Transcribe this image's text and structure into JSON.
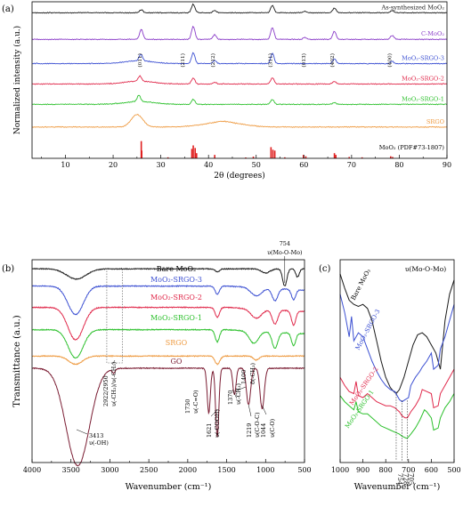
{
  "chart_data": [
    {
      "panel": "(a)",
      "type": "line",
      "title": "",
      "xlabel": "2θ (degrees)",
      "ylabel": "Normalized intensity (a.u.)",
      "xlim": [
        3,
        90
      ],
      "xticks": [
        10,
        20,
        30,
        40,
        50,
        60,
        70,
        80,
        90
      ],
      "grid": false,
      "series": [
        {
          "name": "As-synthesized MoO₂",
          "color": "#1a1a1a",
          "offset": 0.93,
          "amp": 0.055,
          "peaks": [
            [
              25.9,
              0.35
            ],
            [
              36.8,
              1.0
            ],
            [
              41.3,
              0.25
            ],
            [
              53.4,
              0.85
            ],
            [
              60.2,
              0.15
            ],
            [
              66.4,
              0.55
            ],
            [
              78.5,
              0.25
            ]
          ]
        },
        {
          "name": "C-MoO₂",
          "color": "#8a3cc8",
          "offset": 0.76,
          "amp": 0.085,
          "peaks": [
            [
              25.9,
              0.75
            ],
            [
              36.8,
              1.0
            ],
            [
              41.3,
              0.35
            ],
            [
              53.4,
              0.9
            ],
            [
              60.2,
              0.15
            ],
            [
              66.4,
              0.6
            ],
            [
              78.5,
              0.3
            ]
          ]
        },
        {
          "name": "MoO₂-SRGO-3",
          "color": "#3c50d2",
          "offset": 0.605,
          "amp": 0.07,
          "peaks": [
            [
              25.8,
              0.6
            ],
            [
              36.8,
              1.0
            ],
            [
              41.3,
              0.3
            ],
            [
              53.4,
              0.95
            ],
            [
              66.4,
              0.45
            ],
            [
              78.5,
              0.2
            ]
          ]
        },
        {
          "name": "MoO₂-SRGO-2",
          "color": "#e0284a",
          "offset": 0.475,
          "amp": 0.045,
          "peaks": [
            [
              25.6,
              0.75
            ],
            [
              36.8,
              0.85
            ],
            [
              41.3,
              0.25
            ],
            [
              53.4,
              0.9
            ],
            [
              66.4,
              0.35
            ]
          ]
        },
        {
          "name": "MoO₂-SRGO-1",
          "color": "#2cc02c",
          "offset": 0.345,
          "amp": 0.045,
          "peaks": [
            [
              25.4,
              0.9
            ],
            [
              36.8,
              0.7
            ],
            [
              53.4,
              0.7
            ],
            [
              66.4,
              0.25
            ]
          ]
        },
        {
          "name": "SRGO",
          "color": "#ee9a40",
          "offset": 0.2,
          "amp": 0.08,
          "peaks": [
            [
              25.0,
              1.0
            ],
            [
              43.0,
              0.08
            ]
          ]
        }
      ],
      "reference": {
        "name": "MoO₂ (PDF#73-1807)",
        "color": "#e02020",
        "x": [
          25.9,
          26.0,
          31.5,
          36.5,
          36.8,
          37.2,
          37.5,
          41.3,
          47.8,
          49.4,
          53.1,
          53.5,
          53.9,
          56.0,
          59.9,
          60.4,
          66.4,
          66.7,
          69.5,
          72.2,
          78.2,
          78.6
        ],
        "y": [
          1.0,
          0.45,
          0.06,
          0.55,
          0.75,
          0.6,
          0.3,
          0.2,
          0.05,
          0.1,
          0.65,
          0.5,
          0.45,
          0.06,
          0.2,
          0.12,
          0.3,
          0.2,
          0.08,
          0.06,
          0.12,
          0.08
        ]
      },
      "annotations": [
        {
          "text": "(011)",
          "x": 26.0
        },
        {
          "text": "(211)",
          "x": 36.0
        },
        {
          "text": "(212)",
          "x": 41.3
        },
        {
          "text": "(311)",
          "x": 53.3
        },
        {
          "text": "(013)",
          "x": 60.3
        },
        {
          "text": "(402)",
          "x": 66.3
        },
        {
          "text": "(400)",
          "x": 78.3
        }
      ]
    },
    {
      "panel": "(b)",
      "type": "line",
      "title": "",
      "xlabel": "Wavenumber (cm⁻¹)",
      "ylabel": "Transmittance (a.u.)",
      "xlim": [
        4000,
        500
      ],
      "xticks": [
        4000,
        3500,
        3000,
        2500,
        2000,
        1500,
        1000,
        500
      ],
      "grid": false,
      "series": [
        {
          "name": "Bare MoO₂",
          "color": "#1a1a1a",
          "base": 0.955,
          "dips": [
            [
              3430,
              280,
              0.05
            ],
            [
              1620,
              60,
              0.015
            ],
            [
              1000,
              120,
              0.02
            ],
            [
              754,
              60,
              0.085
            ],
            [
              590,
              50,
              0.04
            ]
          ]
        },
        {
          "name": "MoO₂-SRGO-3",
          "color": "#3c50d2",
          "base": 0.87,
          "dips": [
            [
              3440,
              220,
              0.14
            ],
            [
              1620,
              60,
              0.04
            ],
            [
              1120,
              150,
              0.04
            ],
            [
              880,
              80,
              0.06
            ],
            [
              640,
              60,
              0.05
            ]
          ]
        },
        {
          "name": "MoO₂-SRGO-2",
          "color": "#e0284a",
          "base": 0.765,
          "dips": [
            [
              3440,
              220,
              0.16
            ],
            [
              1620,
              60,
              0.05
            ],
            [
              1120,
              150,
              0.045
            ],
            [
              880,
              80,
              0.07
            ],
            [
              640,
              60,
              0.07
            ]
          ]
        },
        {
          "name": "MoO₂-SRGO-1",
          "color": "#2cc02c",
          "base": 0.655,
          "dips": [
            [
              3440,
              210,
              0.14
            ],
            [
              1620,
              60,
              0.06
            ],
            [
              1150,
              130,
              0.06
            ],
            [
              880,
              80,
              0.08
            ],
            [
              640,
              60,
              0.06
            ]
          ]
        },
        {
          "name": "SRGO",
          "color": "#ee9a40",
          "base": 0.525,
          "dips": [
            [
              3440,
              200,
              0.04
            ],
            [
              1620,
              70,
              0.04
            ],
            [
              1120,
              80,
              0.02
            ]
          ]
        },
        {
          "name": "GO",
          "color": "#7a1c32",
          "base": 0.465,
          "dips": [
            [
              3413,
              330,
              0.48
            ],
            [
              1730,
              45,
              0.22
            ],
            [
              1621,
              45,
              0.34
            ],
            [
              1400,
              45,
              0.13
            ],
            [
              1219,
              60,
              0.18
            ],
            [
              1044,
              60,
              0.2
            ],
            [
              2950,
              40,
              0.02
            ]
          ]
        }
      ],
      "annotations": [
        {
          "text": "754",
          "x": 754
        },
        {
          "text": "υ(Mo-O-Mo)",
          "x": 754
        },
        {
          "text": "2922/2950",
          "x": 2950
        },
        {
          "text": "υ(-CH₂)/υ(-CH₃)",
          "x": 2922
        },
        {
          "text": "3413",
          "x": 3413
        },
        {
          "text": "υ(-OH)",
          "x": 3413
        },
        {
          "text": "1730",
          "x": 1730
        },
        {
          "text": "υ(-C=O)",
          "x": 1730
        },
        {
          "text": "1621",
          "x": 1621
        },
        {
          "text": "υ(-COOH)",
          "x": 1621
        },
        {
          "text": "1370",
          "x": 1370
        },
        {
          "text": "υ(-CH₃)",
          "x": 1370
        },
        {
          "text": "1400",
          "x": 1400
        },
        {
          "text": "δ(-CH₃)",
          "x": 1400
        },
        {
          "text": "1219",
          "x": 1219
        },
        {
          "text": "υ(C-O-C)",
          "x": 1219
        },
        {
          "text": "1044",
          "x": 1044
        },
        {
          "text": "υ(C-O)",
          "x": 1044
        }
      ]
    },
    {
      "panel": "(c)",
      "type": "line",
      "title": "υ(Mo-O-Mo)",
      "xlabel": "Wavenumber (cm⁻¹)",
      "ylabel": "",
      "xlim": [
        1000,
        500
      ],
      "xticks": [
        1000,
        900,
        800,
        700,
        600,
        500
      ],
      "grid": false,
      "series": [
        {
          "name": "Bare MoO₂",
          "color": "#1a1a1a",
          "points": [
            [
              1000,
              0.93
            ],
            [
              980,
              0.86
            ],
            [
              960,
              0.8
            ],
            [
              940,
              0.78
            ],
            [
              920,
              0.77
            ],
            [
              900,
              0.78
            ],
            [
              880,
              0.76
            ],
            [
              860,
              0.7
            ],
            [
              840,
              0.6
            ],
            [
              820,
              0.5
            ],
            [
              800,
              0.42
            ],
            [
              780,
              0.37
            ],
            [
              765,
              0.35
            ],
            [
              754,
              0.34
            ],
            [
              740,
              0.36
            ],
            [
              720,
              0.42
            ],
            [
              700,
              0.5
            ],
            [
              680,
              0.58
            ],
            [
              660,
              0.63
            ],
            [
              640,
              0.64
            ],
            [
              620,
              0.62
            ],
            [
              600,
              0.58
            ],
            [
              580,
              0.54
            ],
            [
              560,
              0.46
            ],
            [
              540,
              0.7
            ],
            [
              520,
              0.83
            ],
            [
              500,
              0.9
            ]
          ]
        },
        {
          "name": "MoO₂-SRGO-3",
          "color": "#3c50d2",
          "points": [
            [
              1000,
              0.83
            ],
            [
              980,
              0.74
            ],
            [
              960,
              0.62
            ],
            [
              950,
              0.72
            ],
            [
              940,
              0.6
            ],
            [
              920,
              0.64
            ],
            [
              900,
              0.62
            ],
            [
              880,
              0.56
            ],
            [
              860,
              0.5
            ],
            [
              840,
              0.45
            ],
            [
              820,
              0.41
            ],
            [
              800,
              0.38
            ],
            [
              780,
              0.36
            ],
            [
              760,
              0.35
            ],
            [
              740,
              0.31
            ],
            [
              728,
              0.3
            ],
            [
              715,
              0.31
            ],
            [
              700,
              0.32
            ],
            [
              690,
              0.38
            ],
            [
              670,
              0.42
            ],
            [
              650,
              0.45
            ],
            [
              640,
              0.47
            ],
            [
              620,
              0.5
            ],
            [
              600,
              0.54
            ],
            [
              590,
              0.46
            ],
            [
              570,
              0.48
            ],
            [
              560,
              0.56
            ],
            [
              540,
              0.62
            ],
            [
              520,
              0.7
            ],
            [
              500,
              0.78
            ]
          ]
        },
        {
          "name": "MoO₂-SRGO-2",
          "color": "#e0284a",
          "points": [
            [
              1000,
              0.42
            ],
            [
              980,
              0.38
            ],
            [
              960,
              0.35
            ],
            [
              940,
              0.34
            ],
            [
              930,
              0.4
            ],
            [
              920,
              0.33
            ],
            [
              900,
              0.32
            ],
            [
              880,
              0.34
            ],
            [
              860,
              0.32
            ],
            [
              840,
              0.3
            ],
            [
              820,
              0.29
            ],
            [
              800,
              0.28
            ],
            [
              780,
              0.28
            ],
            [
              760,
              0.27
            ],
            [
              740,
              0.25
            ],
            [
              728,
              0.23
            ],
            [
              715,
              0.22
            ],
            [
              705,
              0.22
            ],
            [
              690,
              0.25
            ],
            [
              670,
              0.28
            ],
            [
              650,
              0.32
            ],
            [
              640,
              0.36
            ],
            [
              620,
              0.35
            ],
            [
              600,
              0.34
            ],
            [
              590,
              0.27
            ],
            [
              570,
              0.28
            ],
            [
              560,
              0.34
            ],
            [
              540,
              0.38
            ],
            [
              520,
              0.42
            ],
            [
              500,
              0.46
            ]
          ]
        },
        {
          "name": "MoO₂-SRGO-1",
          "color": "#2cc02c",
          "points": [
            [
              1000,
              0.33
            ],
            [
              980,
              0.3
            ],
            [
              960,
              0.28
            ],
            [
              940,
              0.26
            ],
            [
              930,
              0.3
            ],
            [
              920,
              0.25
            ],
            [
              900,
              0.24
            ],
            [
              880,
              0.24
            ],
            [
              860,
              0.22
            ],
            [
              840,
              0.2
            ],
            [
              820,
              0.18
            ],
            [
              800,
              0.17
            ],
            [
              780,
              0.16
            ],
            [
              760,
              0.15
            ],
            [
              740,
              0.14
            ],
            [
              728,
              0.13
            ],
            [
              710,
              0.12
            ],
            [
              705,
              0.12
            ],
            [
              690,
              0.14
            ],
            [
              670,
              0.17
            ],
            [
              650,
              0.21
            ],
            [
              630,
              0.26
            ],
            [
              620,
              0.25
            ],
            [
              600,
              0.22
            ],
            [
              590,
              0.16
            ],
            [
              570,
              0.17
            ],
            [
              560,
              0.22
            ],
            [
              540,
              0.27
            ],
            [
              520,
              0.3
            ],
            [
              500,
              0.34
            ]
          ]
        }
      ],
      "annotations": [
        {
          "text": "754",
          "x": 754
        },
        {
          "text": "728",
          "x": 728
        },
        {
          "text": "705",
          "x": 705
        }
      ]
    }
  ]
}
